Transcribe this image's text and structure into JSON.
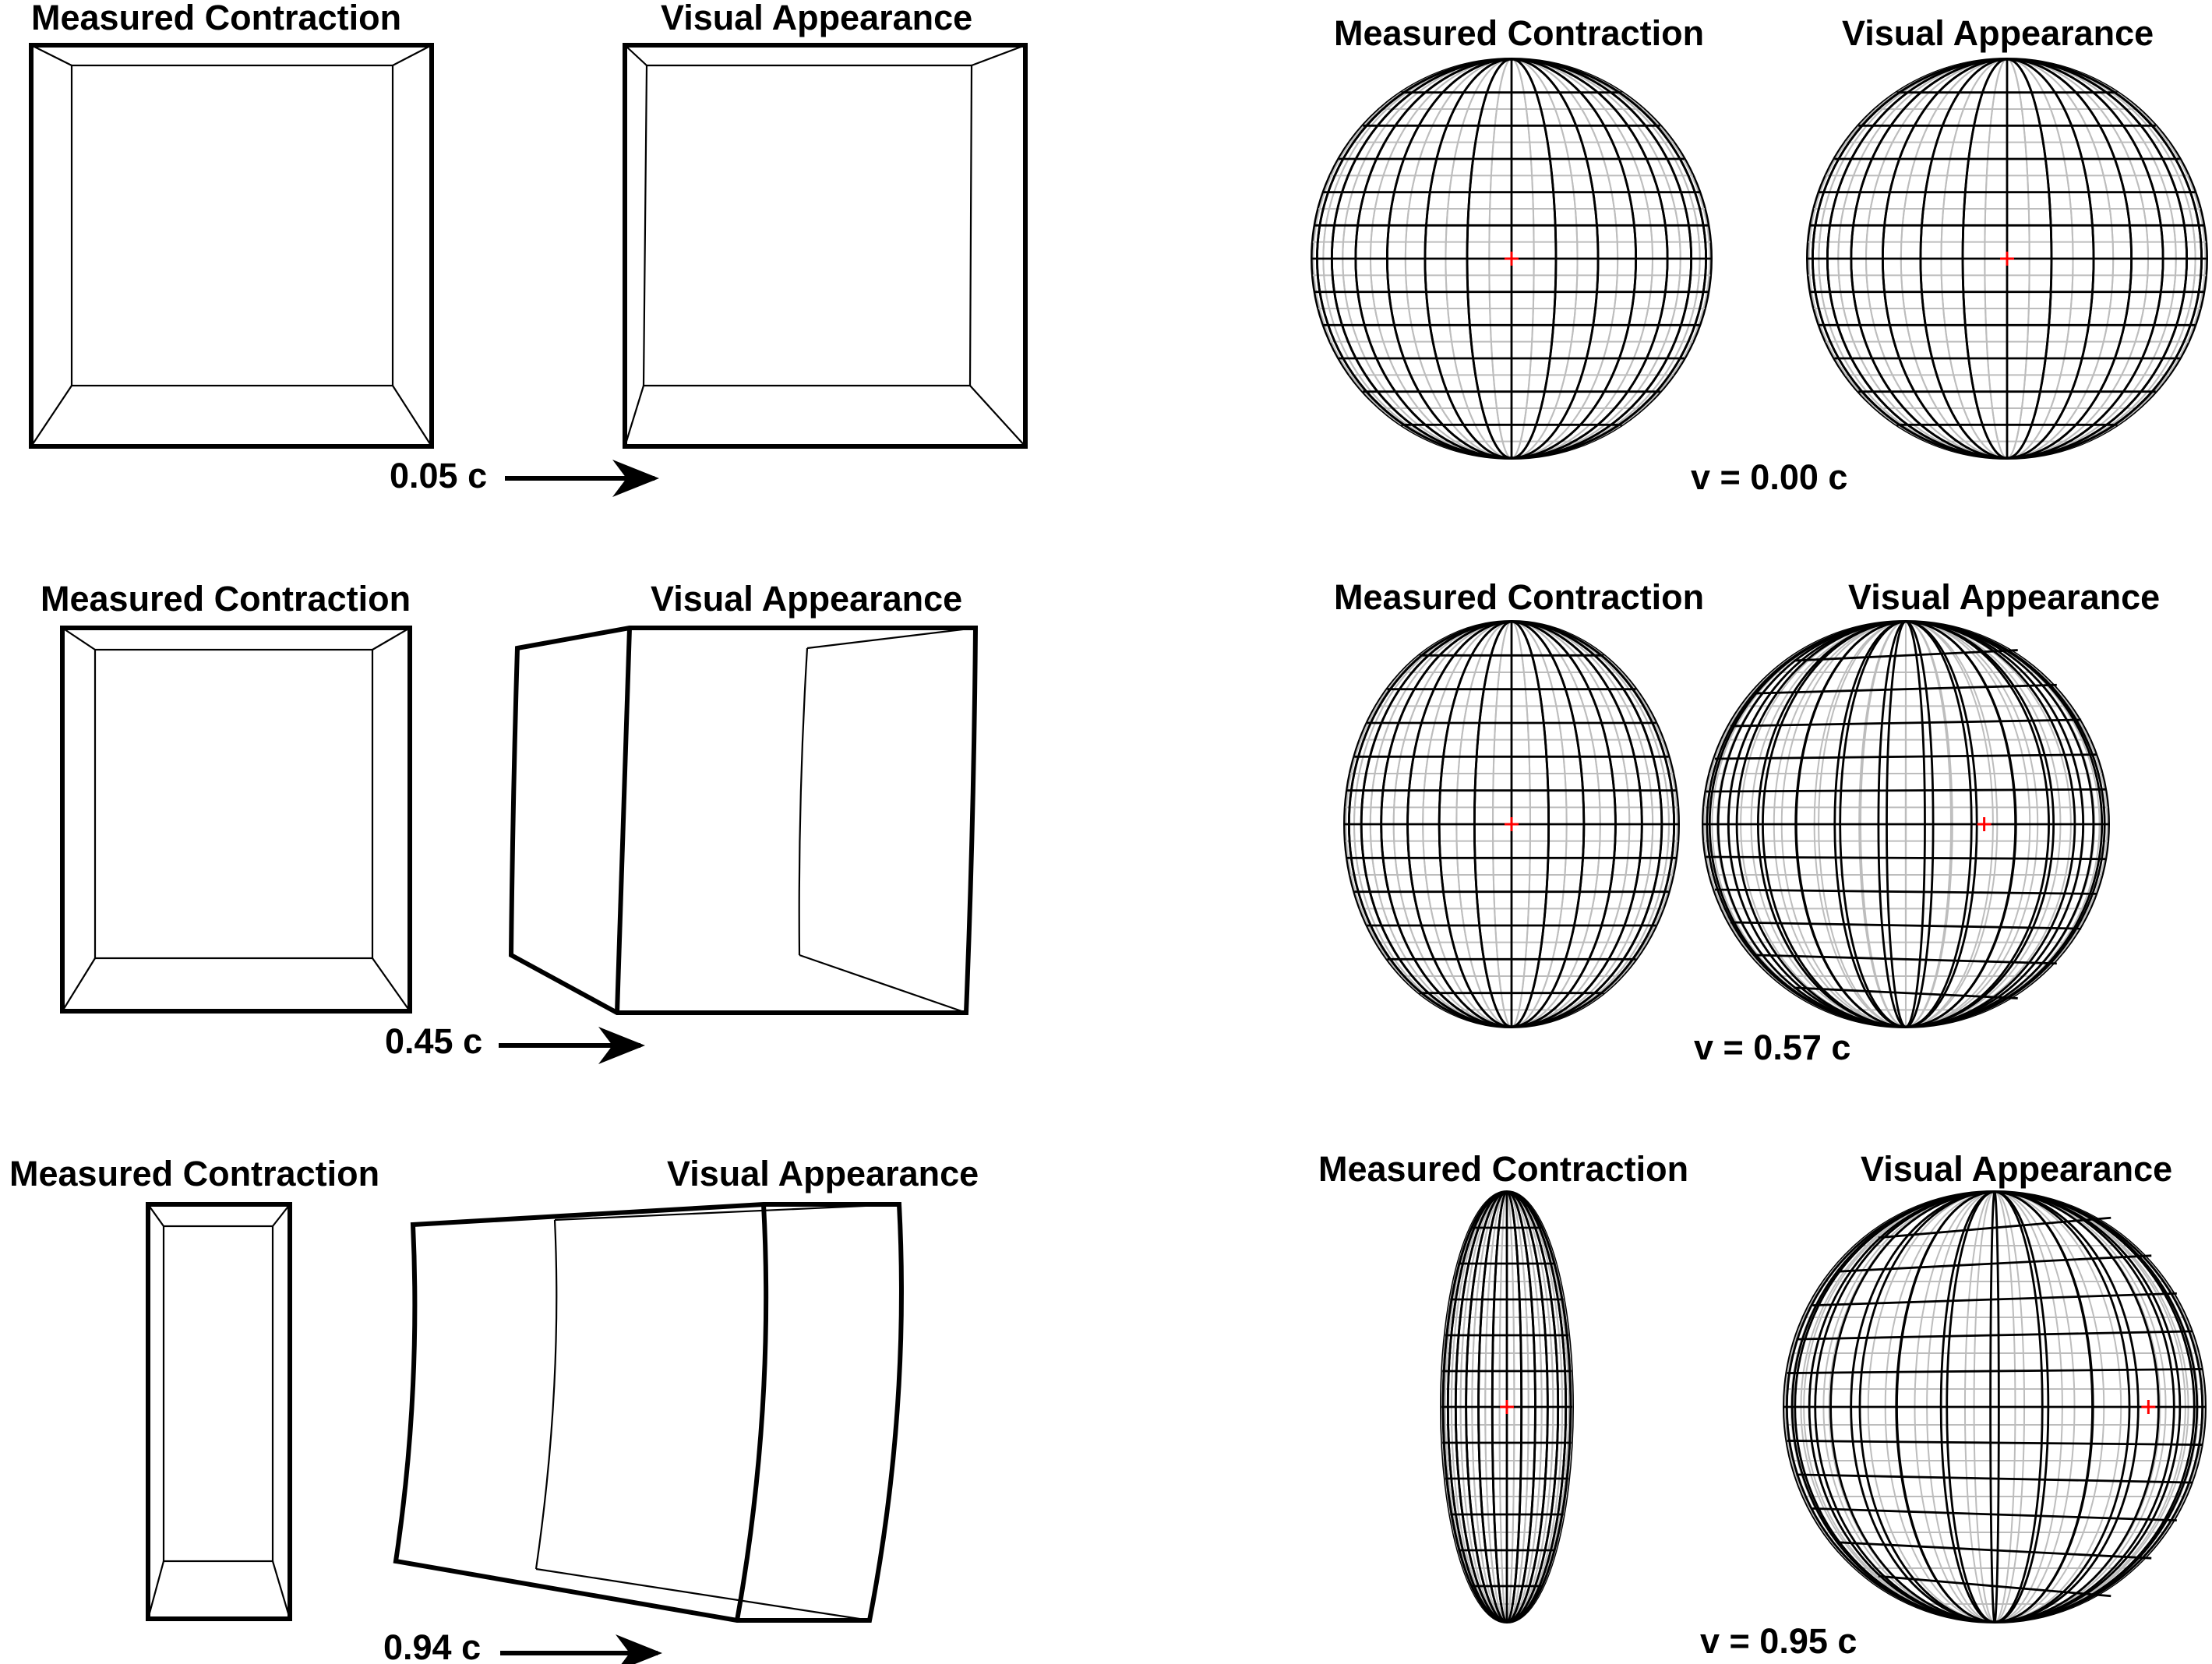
{
  "label_measured": "Measured Contraction",
  "label_visual": "Visual Appearance",
  "cube_rows": [
    {
      "speed_label": "0.05 c"
    },
    {
      "speed_label": "0.45 c"
    },
    {
      "speed_label": "0.94 c"
    }
  ],
  "sphere_rows": [
    {
      "speed_label": "v = 0.00 c"
    },
    {
      "speed_label": "v = 0.57 c"
    },
    {
      "speed_label": "v = 0.95 c"
    }
  ],
  "center_marker_color": "#ff0000"
}
